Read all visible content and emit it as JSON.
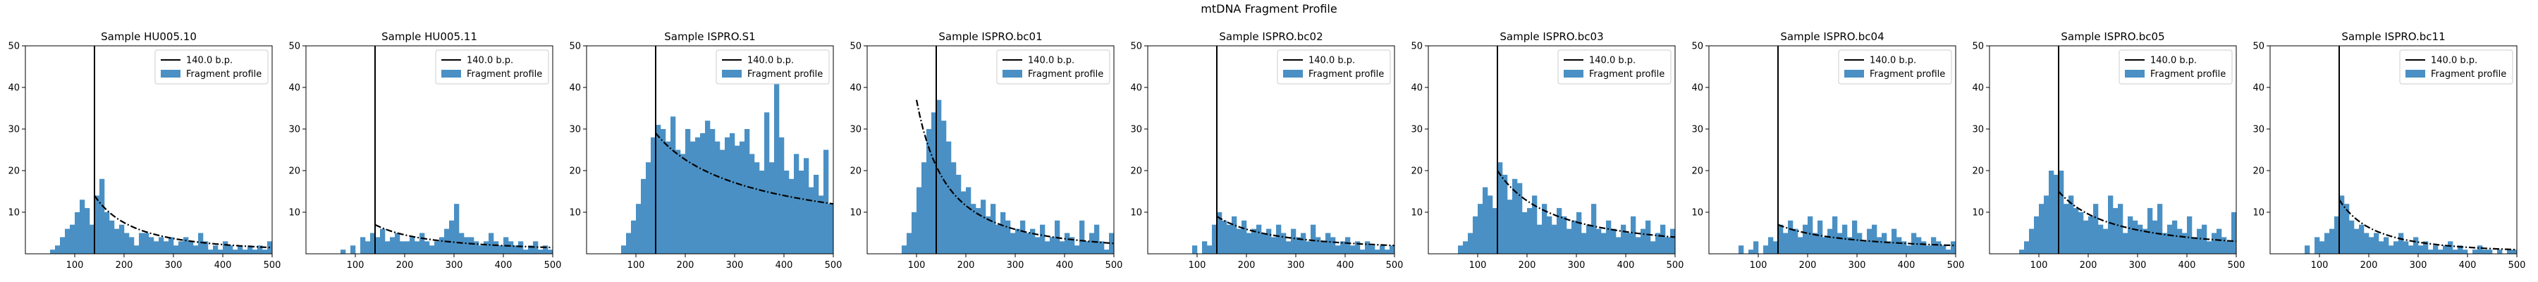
{
  "figure": {
    "title": "mtDNA Fragment Profile"
  },
  "colors": {
    "bars": "#4a90c4",
    "marker": "#000000",
    "curve": "#000000"
  },
  "legend": {
    "line_label": "140.0 b.p.",
    "bar_label": "Fragment profile",
    "placement": "upper-right"
  },
  "chart_data": [
    {
      "type": "bar",
      "title": "Sample HU005.10",
      "xlim": [
        0,
        500
      ],
      "ylim": [
        0,
        50
      ],
      "xticks": [
        100,
        200,
        300,
        400,
        500
      ],
      "yticks": [
        10,
        20,
        30,
        40,
        50
      ],
      "bin_width": 10,
      "bin_start": 50,
      "marker_x": 140,
      "values": [
        1,
        2,
        4,
        6,
        7,
        10,
        13,
        11,
        7,
        14,
        18,
        10,
        8,
        6,
        7,
        5,
        4,
        2,
        5,
        5,
        4,
        3,
        4,
        3,
        4,
        2,
        3,
        4,
        3,
        2,
        5,
        3,
        1,
        2,
        1,
        3,
        2,
        1,
        2,
        1,
        2,
        1,
        2,
        1,
        3
      ],
      "fit_curve": {
        "start_x": 140,
        "end_x": 500,
        "start_y": 14,
        "end_y": 1.5
      }
    },
    {
      "type": "bar",
      "title": "Sample HU005.11",
      "xlim": [
        0,
        500
      ],
      "ylim": [
        0,
        50
      ],
      "xticks": [
        100,
        200,
        300,
        400,
        500
      ],
      "yticks": [
        10,
        20,
        30,
        40,
        50
      ],
      "bin_width": 10,
      "bin_start": 50,
      "marker_x": 140,
      "values": [
        0,
        0,
        1,
        0,
        2,
        0,
        4,
        3,
        5,
        4,
        6,
        3,
        4,
        5,
        3,
        3,
        4,
        3,
        5,
        3,
        2,
        3,
        4,
        6,
        8,
        12,
        5,
        4,
        4,
        3,
        2,
        3,
        5,
        3,
        2,
        4,
        3,
        2,
        3,
        1,
        2,
        3,
        1,
        2,
        1
      ],
      "fit_curve": {
        "start_x": 140,
        "end_x": 500,
        "start_y": 7,
        "end_y": 1.5
      }
    },
    {
      "type": "bar",
      "title": "Sample ISPRO.S1",
      "xlim": [
        0,
        500
      ],
      "ylim": [
        0,
        50
      ],
      "xticks": [
        100,
        200,
        300,
        400,
        500
      ],
      "yticks": [
        10,
        20,
        30,
        40,
        50
      ],
      "bin_width": 10,
      "bin_start": 50,
      "marker_x": 140,
      "values": [
        0,
        0,
        2,
        5,
        8,
        12,
        18,
        22,
        28,
        31,
        30,
        27,
        33,
        25,
        24,
        30,
        27,
        28,
        29,
        32,
        30,
        27,
        25,
        28,
        29,
        26,
        27,
        30,
        24,
        22,
        20,
        34,
        22,
        41,
        28,
        20,
        18,
        24,
        20,
        23,
        16,
        19,
        14,
        25,
        12
      ],
      "fit_curve": {
        "start_x": 140,
        "end_x": 500,
        "start_y": 29,
        "end_y": 12
      }
    },
    {
      "type": "bar",
      "title": "Sample ISPRO.bc01",
      "xlim": [
        0,
        500
      ],
      "ylim": [
        0,
        50
      ],
      "xticks": [
        100,
        200,
        300,
        400,
        500
      ],
      "yticks": [
        10,
        20,
        30,
        40,
        50
      ],
      "bin_width": 10,
      "bin_start": 50,
      "marker_x": 140,
      "values": [
        0,
        0,
        2,
        5,
        10,
        16,
        22,
        30,
        34,
        37,
        32,
        27,
        22,
        19,
        15,
        16,
        12,
        11,
        13,
        9,
        12,
        7,
        10,
        8,
        5,
        6,
        8,
        5,
        6,
        4,
        7,
        3,
        4,
        8,
        3,
        5,
        4,
        2,
        8,
        3,
        5,
        7,
        3,
        1,
        5
      ],
      "fit_curve": {
        "start_x": 100,
        "end_x": 500,
        "start_y": 37,
        "end_y": 2.5
      }
    },
    {
      "type": "bar",
      "title": "Sample ISPRO.bc02",
      "xlim": [
        0,
        500
      ],
      "ylim": [
        0,
        50
      ],
      "xticks": [
        100,
        200,
        300,
        400,
        500
      ],
      "yticks": [
        10,
        20,
        30,
        40,
        50
      ],
      "bin_width": 10,
      "bin_start": 50,
      "marker_x": 140,
      "values": [
        0,
        0,
        0,
        0,
        2,
        0,
        3,
        2,
        7,
        10,
        8,
        7,
        9,
        6,
        8,
        5,
        6,
        7,
        5,
        6,
        4,
        7,
        5,
        3,
        6,
        4,
        5,
        3,
        7,
        4,
        3,
        5,
        4,
        2,
        3,
        4,
        2,
        3,
        1,
        3,
        2,
        1,
        2,
        1,
        2
      ],
      "fit_curve": {
        "start_x": 140,
        "end_x": 500,
        "start_y": 9,
        "end_y": 2
      }
    },
    {
      "type": "bar",
      "title": "Sample ISPRO.bc03",
      "xlim": [
        0,
        500
      ],
      "ylim": [
        0,
        50
      ],
      "xticks": [
        100,
        200,
        300,
        400,
        500
      ],
      "yticks": [
        10,
        20,
        30,
        40,
        50
      ],
      "bin_width": 10,
      "bin_start": 50,
      "marker_x": 140,
      "values": [
        0,
        2,
        3,
        5,
        9,
        12,
        16,
        14,
        11,
        22,
        19,
        13,
        18,
        17,
        10,
        11,
        14,
        7,
        12,
        9,
        7,
        11,
        9,
        6,
        8,
        10,
        5,
        7,
        12,
        6,
        5,
        8,
        6,
        4,
        7,
        5,
        9,
        4,
        6,
        8,
        3,
        5,
        7,
        4,
        6
      ],
      "fit_curve": {
        "start_x": 140,
        "end_x": 500,
        "start_y": 20,
        "end_y": 4
      }
    },
    {
      "type": "bar",
      "title": "Sample ISPRO.bc04",
      "xlim": [
        0,
        500
      ],
      "ylim": [
        0,
        50
      ],
      "xticks": [
        100,
        200,
        300,
        400,
        500
      ],
      "yticks": [
        10,
        20,
        30,
        40,
        50
      ],
      "bin_width": 10,
      "bin_start": 50,
      "marker_x": 140,
      "values": [
        0,
        2,
        0,
        1,
        3,
        0,
        2,
        4,
        3,
        7,
        5,
        8,
        6,
        4,
        7,
        9,
        5,
        8,
        4,
        6,
        9,
        5,
        7,
        4,
        8,
        5,
        3,
        6,
        7,
        4,
        5,
        3,
        6,
        4,
        3,
        2,
        5,
        4,
        3,
        2,
        4,
        3,
        2,
        1,
        3
      ],
      "fit_curve": {
        "start_x": 140,
        "end_x": 500,
        "start_y": 7,
        "end_y": 2
      }
    },
    {
      "type": "bar",
      "title": "Sample ISPRO.bc05",
      "xlim": [
        0,
        500
      ],
      "ylim": [
        0,
        50
      ],
      "xticks": [
        100,
        200,
        300,
        400,
        500
      ],
      "yticks": [
        10,
        20,
        30,
        40,
        50
      ],
      "bin_width": 10,
      "bin_start": 50,
      "marker_x": 140,
      "values": [
        0,
        1,
        3,
        6,
        9,
        12,
        14,
        20,
        19,
        20,
        12,
        14,
        11,
        10,
        8,
        9,
        12,
        7,
        6,
        14,
        11,
        12,
        5,
        9,
        8,
        7,
        6,
        11,
        8,
        12,
        5,
        7,
        8,
        6,
        5,
        9,
        4,
        6,
        7,
        3,
        5,
        6,
        4,
        3,
        10
      ],
      "fit_curve": {
        "start_x": 140,
        "end_x": 500,
        "start_y": 15,
        "end_y": 3
      }
    },
    {
      "type": "bar",
      "title": "Sample ISPRO.bc11",
      "xlim": [
        0,
        500
      ],
      "ylim": [
        0,
        50
      ],
      "xticks": [
        100,
        200,
        300,
        400,
        500
      ],
      "yticks": [
        10,
        20,
        30,
        40,
        50
      ],
      "bin_width": 10,
      "bin_start": 50,
      "marker_x": 140,
      "values": [
        0,
        0,
        2,
        0,
        4,
        3,
        5,
        6,
        9,
        14,
        12,
        8,
        6,
        7,
        5,
        4,
        5,
        3,
        4,
        2,
        3,
        5,
        3,
        2,
        4,
        2,
        3,
        1,
        2,
        1,
        2,
        3,
        1,
        2,
        1,
        0,
        1,
        2,
        1,
        1,
        0,
        1,
        0,
        1,
        1
      ],
      "fit_curve": {
        "start_x": 140,
        "end_x": 500,
        "start_y": 13,
        "end_y": 1
      }
    }
  ]
}
